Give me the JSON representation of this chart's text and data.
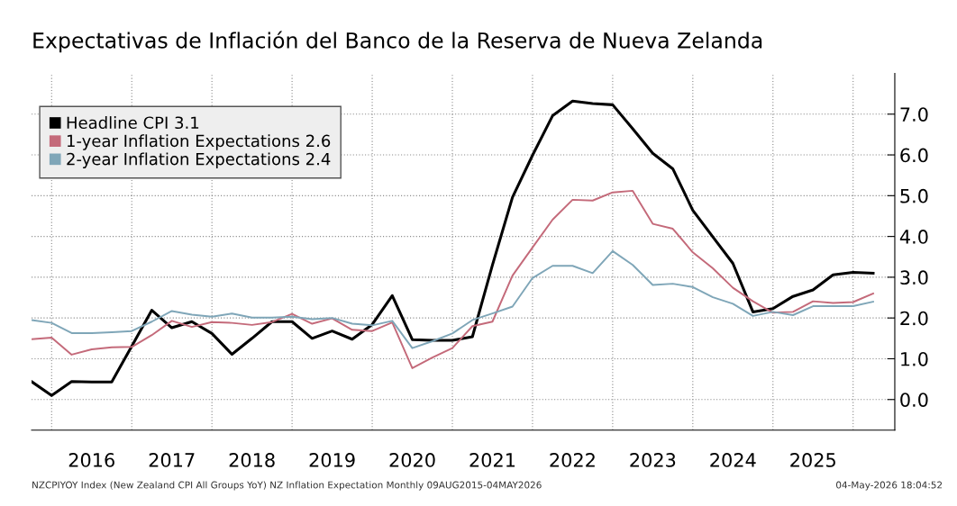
{
  "chart_data": {
    "type": "line",
    "title": "Expectativas de Inflación del Banco de la Reserva de Nueva Zelanda",
    "x": [
      2015.75,
      2016.0,
      2016.25,
      2016.5,
      2016.75,
      2017.0,
      2017.25,
      2017.5,
      2017.75,
      2018.0,
      2018.25,
      2018.5,
      2018.75,
      2019.0,
      2019.25,
      2019.5,
      2019.75,
      2020.0,
      2020.25,
      2020.5,
      2020.75,
      2021.0,
      2021.25,
      2021.5,
      2021.75,
      2022.0,
      2022.25,
      2022.5,
      2022.75,
      2023.0,
      2023.25,
      2023.5,
      2023.75,
      2024.0,
      2024.25,
      2024.5,
      2024.75,
      2025.0,
      2025.25,
      2025.5,
      2025.75,
      2026.0,
      2026.25
    ],
    "series": [
      {
        "name": "Headline CPI 3.1",
        "color": "#000000",
        "values": [
          0.44,
          0.1,
          0.44,
          0.43,
          0.43,
          1.31,
          2.19,
          1.76,
          1.91,
          1.62,
          1.11,
          1.5,
          1.91,
          1.91,
          1.5,
          1.68,
          1.48,
          1.84,
          2.55,
          1.47,
          1.45,
          1.45,
          1.54,
          3.3,
          4.96,
          5.99,
          6.96,
          7.32,
          7.26,
          7.23,
          6.64,
          6.04,
          5.66,
          4.64,
          3.99,
          3.34,
          2.15,
          2.23,
          2.53,
          2.69,
          3.06,
          3.12,
          3.1
        ]
      },
      {
        "name": "1-year Inflation Expectations 2.6",
        "color": "#c46a7a",
        "values": [
          1.48,
          1.52,
          1.1,
          1.23,
          1.28,
          1.29,
          1.58,
          1.93,
          1.78,
          1.9,
          1.88,
          1.83,
          1.9,
          2.1,
          1.86,
          1.99,
          1.71,
          1.68,
          1.89,
          0.77,
          1.03,
          1.26,
          1.8,
          1.91,
          3.04,
          3.73,
          4.41,
          4.9,
          4.88,
          5.08,
          5.12,
          4.31,
          4.19,
          3.61,
          3.22,
          2.74,
          2.41,
          2.13,
          2.15,
          2.41,
          2.37,
          2.39,
          2.6
        ]
      },
      {
        "name": "2-year Inflation Expectations 2.4",
        "color": "#7fa6b8",
        "values": [
          1.95,
          1.88,
          1.63,
          1.63,
          1.65,
          1.68,
          1.91,
          2.17,
          2.08,
          2.03,
          2.11,
          2.01,
          2.01,
          2.03,
          1.97,
          2.0,
          1.86,
          1.82,
          1.93,
          1.26,
          1.43,
          1.62,
          1.95,
          2.11,
          2.28,
          2.98,
          3.28,
          3.28,
          3.1,
          3.64,
          3.3,
          2.81,
          2.84,
          2.76,
          2.51,
          2.35,
          2.05,
          2.15,
          2.07,
          2.29,
          2.29,
          2.29,
          2.4
        ]
      }
    ],
    "xlim": [
      2015.75,
      2026.52
    ],
    "xticks": [
      {
        "value": 2016,
        "label": null
      },
      {
        "value": 2016.5,
        "label": "2016"
      },
      {
        "value": 2017,
        "label": null
      },
      {
        "value": 2017.5,
        "label": "2017"
      },
      {
        "value": 2018,
        "label": null
      },
      {
        "value": 2018.5,
        "label": "2018"
      },
      {
        "value": 2019,
        "label": null
      },
      {
        "value": 2019.5,
        "label": "2019"
      },
      {
        "value": 2020,
        "label": null
      },
      {
        "value": 2020.5,
        "label": "2020"
      },
      {
        "value": 2021,
        "label": null
      },
      {
        "value": 2021.5,
        "label": "2021"
      },
      {
        "value": 2022,
        "label": null
      },
      {
        "value": 2022.5,
        "label": "2022"
      },
      {
        "value": 2023,
        "label": null
      },
      {
        "value": 2023.5,
        "label": "2023"
      },
      {
        "value": 2024,
        "label": null
      },
      {
        "value": 2024.5,
        "label": "2024"
      },
      {
        "value": 2025,
        "label": null
      },
      {
        "value": 2025.5,
        "label": "2025"
      },
      {
        "value": 2026,
        "label": null
      }
    ],
    "ylim": [
      -0.75,
      8.0
    ],
    "yticks": [
      {
        "value": 0,
        "label": "0.0"
      },
      {
        "value": 1,
        "label": "1.0"
      },
      {
        "value": 2,
        "label": "2.0"
      },
      {
        "value": 3,
        "label": "3.0"
      },
      {
        "value": 4,
        "label": "4.0"
      },
      {
        "value": 5,
        "label": "5.0"
      },
      {
        "value": 6,
        "label": "6.0"
      },
      {
        "value": 7,
        "label": "7.0"
      }
    ],
    "grid": true,
    "legend": "top left",
    "line_style": "solid",
    "marker": "none",
    "annotations": [
      "NZCPIYOY Index (New Zealand CPI All Groups YoY) NZ Inflation Expectation Monthly 09AUG2015-04MAY2026",
      "04-May-2026 18:04:52"
    ]
  }
}
